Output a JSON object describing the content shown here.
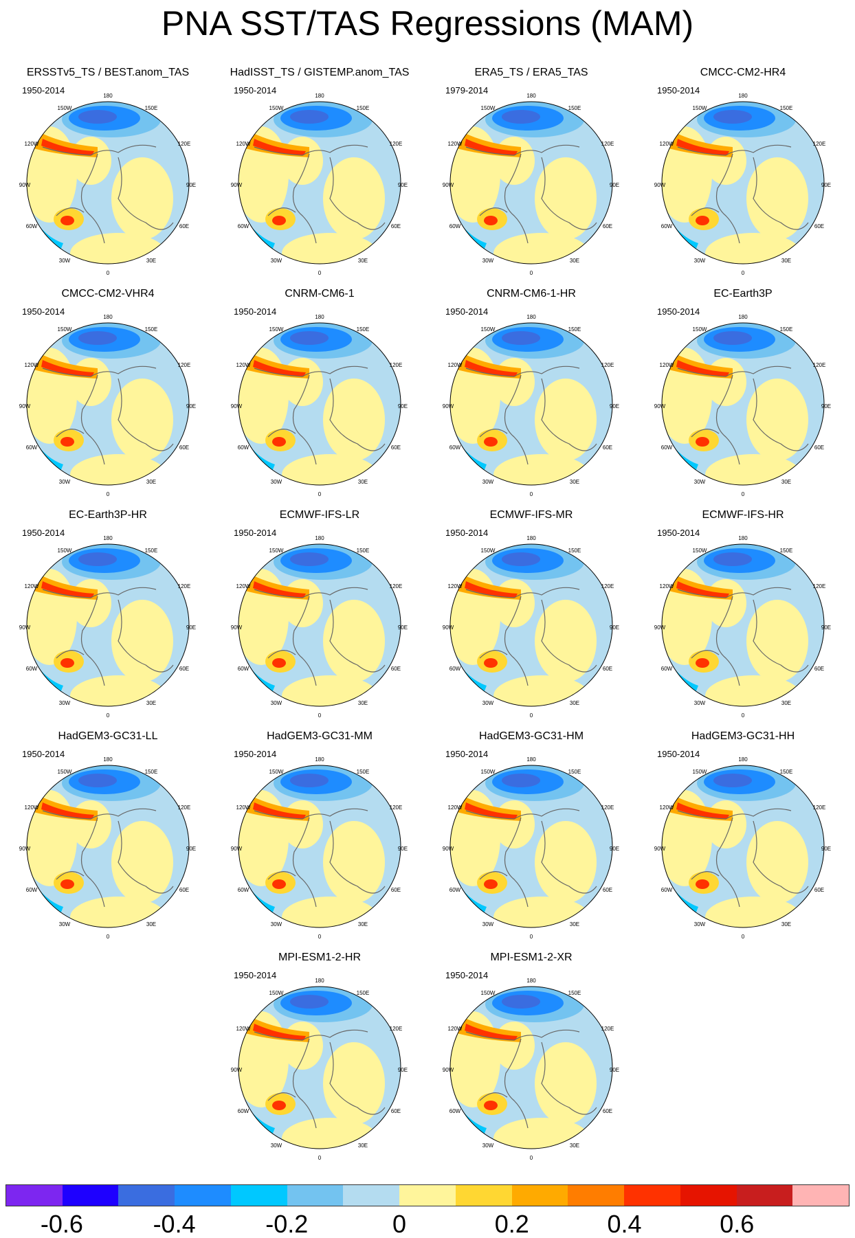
{
  "title": "PNA SST/TAS Regressions (MAM)",
  "panels": [
    {
      "name": "ERSSTv5_TS / BEST.anom_TAS",
      "period": "1950-2014"
    },
    {
      "name": "HadISST_TS / GISTEMP.anom_TAS",
      "period": "1950-2014"
    },
    {
      "name": "ERA5_TS / ERA5_TAS",
      "period": "1979-2014"
    },
    {
      "name": "CMCC-CM2-HR4",
      "period": "1950-2014"
    },
    {
      "name": "CMCC-CM2-VHR4",
      "period": "1950-2014"
    },
    {
      "name": "CNRM-CM6-1",
      "period": "1950-2014"
    },
    {
      "name": "CNRM-CM6-1-HR",
      "period": "1950-2014"
    },
    {
      "name": "EC-Earth3P",
      "period": "1950-2014"
    },
    {
      "name": "EC-Earth3P-HR",
      "period": "1950-2014"
    },
    {
      "name": "ECMWF-IFS-LR",
      "period": "1950-2014"
    },
    {
      "name": "ECMWF-IFS-MR",
      "period": "1950-2014"
    },
    {
      "name": "ECMWF-IFS-HR",
      "period": "1950-2014"
    },
    {
      "name": "HadGEM3-GC31-LL",
      "period": "1950-2014"
    },
    {
      "name": "HadGEM3-GC31-MM",
      "period": "1950-2014"
    },
    {
      "name": "HadGEM3-GC31-HM",
      "period": "1950-2014"
    },
    {
      "name": "HadGEM3-GC31-HH",
      "period": "1950-2014"
    },
    {
      "name": "MPI-ESM1-2-HR",
      "period": "1950-2014"
    },
    {
      "name": "MPI-ESM1-2-XR",
      "period": "1950-2014"
    }
  ],
  "lon_labels": [
    "180",
    "150W",
    "150E",
    "120W",
    "120E",
    "90W",
    "90E",
    "60W",
    "60E",
    "30W",
    "30E",
    "0"
  ],
  "colorbar": {
    "colors": [
      "#7d26f0",
      "#1e00ff",
      "#3a6de0",
      "#1e8cff",
      "#00c8ff",
      "#73c3f0",
      "#b4dcf0",
      "#fff59b",
      "#ffd732",
      "#ffaa00",
      "#ff7d00",
      "#ff3200",
      "#e61400",
      "#c81e1e",
      "#ffb4b4"
    ],
    "labels": [
      "-0.6",
      "-0.4",
      "-0.2",
      "0",
      "0.2",
      "0.4",
      "0.6"
    ],
    "label_values": [
      -0.6,
      -0.4,
      -0.2,
      0,
      0.2,
      0.4,
      0.6
    ]
  }
}
